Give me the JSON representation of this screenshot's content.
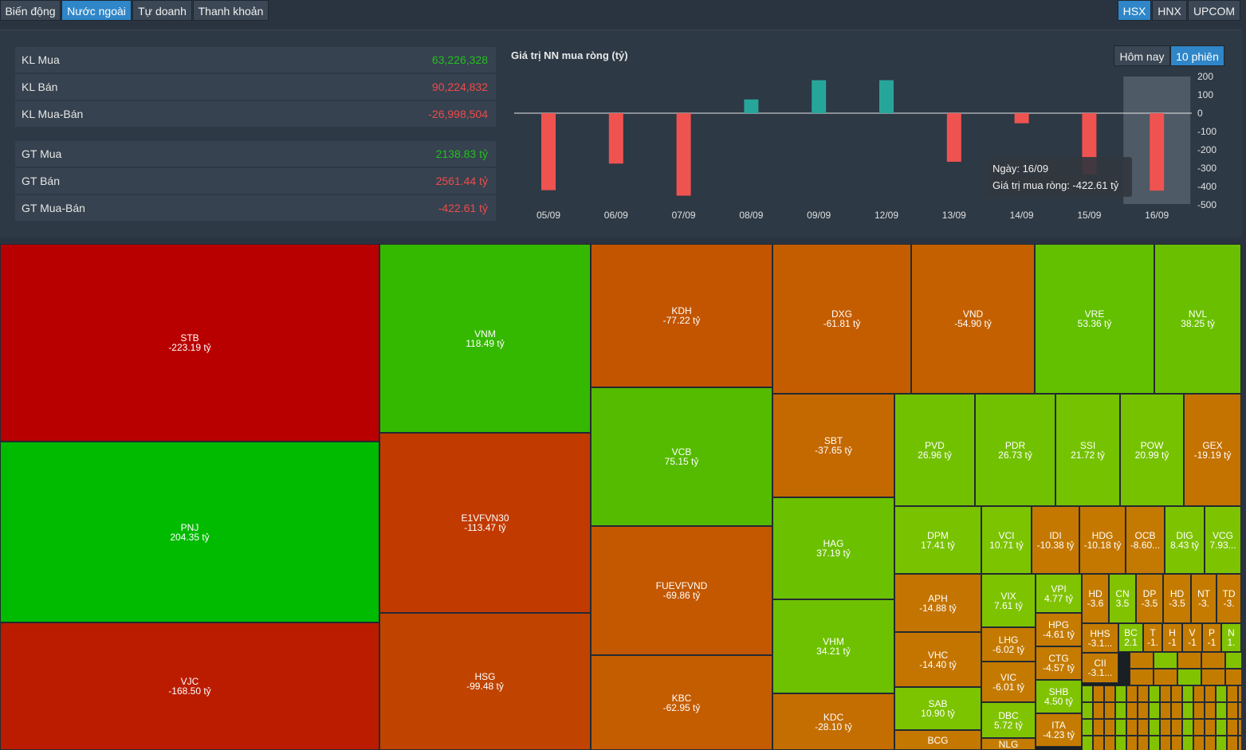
{
  "tabs": [
    "Biến động",
    "Nước ngoài",
    "Tự doanh",
    "Thanh khoản"
  ],
  "exchanges": [
    "HSX",
    "HNX",
    "UPCOM"
  ],
  "stats": [
    {
      "label": "KL Mua",
      "value": "63,226,328",
      "color": "green"
    },
    {
      "label": "KL Bán",
      "value": "90,224,832",
      "color": "red"
    },
    {
      "label": "KL Mua-Bán",
      "value": "-26,998,504",
      "color": "red"
    },
    {
      "label": "GT Mua",
      "value": "2138.83 tỷ",
      "color": "green"
    },
    {
      "label": "GT Bán",
      "value": "2561.44 tỷ",
      "color": "red"
    },
    {
      "label": "GT Mua-Bán",
      "value": "-422.61 tỷ",
      "color": "red"
    }
  ],
  "chart_controls": {
    "today": "Hôm nay",
    "ten_sessions": "10 phiên"
  },
  "tooltip": {
    "date": "Ngày: 16/09",
    "value": "Giá trị mua ròng: -422.61 tỷ"
  },
  "colors": {
    "up": "#26a69a",
    "down": "#ef5350",
    "bg": "#2a3440"
  },
  "chart_data": {
    "type": "bar",
    "title": "Giá trị NN mua ròng (tỷ)",
    "categories": [
      "05/09",
      "06/09",
      "07/09",
      "08/09",
      "09/09",
      "12/09",
      "13/09",
      "14/09",
      "15/09",
      "16/09"
    ],
    "values": [
      -420,
      -275,
      -450,
      75,
      180,
      180,
      -265,
      -55,
      -335,
      -422.61
    ],
    "ylim": [
      -500,
      200
    ],
    "yticks": [
      200,
      100,
      0,
      -100,
      -200,
      -300,
      -400,
      -500
    ],
    "highlight": "16/09"
  },
  "treemap": [
    {
      "sym": "STB",
      "val": "-223.19 tỷ",
      "color": "#b80000"
    },
    {
      "sym": "PNJ",
      "val": "204.35 tỷ",
      "color": "#00bb00"
    },
    {
      "sym": "VJC",
      "val": "-168.50 tỷ",
      "color": "#bb1c00"
    },
    {
      "sym": "VNM",
      "val": "118.49 tỷ",
      "color": "#35b800"
    },
    {
      "sym": "E1VFVN30",
      "val": "-113.47 tỷ",
      "color": "#c13a00"
    },
    {
      "sym": "HSG",
      "val": "-99.48 tỷ",
      "color": "#c04400"
    },
    {
      "sym": "KDH",
      "val": "-77.22 tỷ",
      "color": "#c35500"
    },
    {
      "sym": "VCB",
      "val": "75.15 tỷ",
      "color": "#55bb00"
    },
    {
      "sym": "FUEVFVND",
      "val": "-69.86 tỷ",
      "color": "#c35800"
    },
    {
      "sym": "KBC",
      "val": "-62.95 tỷ",
      "color": "#c45c00"
    },
    {
      "sym": "DXG",
      "val": "-61.81 tỷ",
      "color": "#c45d00"
    },
    {
      "sym": "VND",
      "val": "-54.90 tỷ",
      "color": "#c46000"
    },
    {
      "sym": "VRE",
      "val": "53.36 tỷ",
      "color": "#62c000"
    },
    {
      "sym": "NVL",
      "val": "38.25 tỷ",
      "color": "#6ac000"
    },
    {
      "sym": "SBT",
      "val": "-37.65 tỷ",
      "color": "#c46800"
    },
    {
      "sym": "HAG",
      "val": "37.19 tỷ",
      "color": "#6bc000"
    },
    {
      "sym": "VHM",
      "val": "34.21 tỷ",
      "color": "#6ec100"
    },
    {
      "sym": "KDC",
      "val": "-28.10 tỷ",
      "color": "#c46d00"
    },
    {
      "sym": "PVD",
      "val": "26.96 tỷ",
      "color": "#72c100"
    },
    {
      "sym": "PDR",
      "val": "26.73 tỷ",
      "color": "#72c100"
    },
    {
      "sym": "SSI",
      "val": "21.72 tỷ",
      "color": "#75c200"
    },
    {
      "sym": "POW",
      "val": "20.99 tỷ",
      "color": "#76c200"
    },
    {
      "sym": "GEX",
      "val": "-19.19 tỷ",
      "color": "#c47200"
    },
    {
      "sym": "DPM",
      "val": "17.41 tỷ",
      "color": "#78c200"
    },
    {
      "sym": "VCI",
      "val": "10.71 tỷ",
      "color": "#7cc300"
    },
    {
      "sym": "IDI",
      "val": "-10.38 tỷ",
      "color": "#c47800"
    },
    {
      "sym": "HDG",
      "val": "-10.18 tỷ",
      "color": "#c47800"
    },
    {
      "sym": "OCB",
      "val": "-8.60...",
      "color": "#c47900"
    },
    {
      "sym": "DIG",
      "val": "8.43 tỷ",
      "color": "#7ec300"
    },
    {
      "sym": "VCG",
      "val": "7.93...",
      "color": "#7ec300"
    },
    {
      "sym": "APH",
      "val": "-14.88 tỷ",
      "color": "#c47400"
    },
    {
      "sym": "VHC",
      "val": "-14.40 tỷ",
      "color": "#c47500"
    },
    {
      "sym": "SAB",
      "val": "10.90 tỷ",
      "color": "#7cc300"
    },
    {
      "sym": "BCG",
      "val": "",
      "color": "#c47800"
    },
    {
      "sym": "VIX",
      "val": "7.61 tỷ",
      "color": "#7ec300"
    },
    {
      "sym": "LHG",
      "val": "-6.02 tỷ",
      "color": "#c47a00"
    },
    {
      "sym": "VIC",
      "val": "-6.01 tỷ",
      "color": "#c47a00"
    },
    {
      "sym": "DBC",
      "val": "5.72 tỷ",
      "color": "#80c300"
    },
    {
      "sym": "VPI",
      "val": "4.77 tỷ",
      "color": "#80c300"
    },
    {
      "sym": "HPG",
      "val": "-4.61 tỷ",
      "color": "#c47b00"
    },
    {
      "sym": "CTG",
      "val": "-4.57 tỷ",
      "color": "#c47b00"
    },
    {
      "sym": "SHB",
      "val": "4.50 tỷ",
      "color": "#80c300"
    },
    {
      "sym": "ITA",
      "val": "-4.23 tỷ",
      "color": "#c47b00"
    },
    {
      "sym": "HD",
      "val": "-3.6",
      "color": "#c47b00"
    },
    {
      "sym": "CN",
      "val": "3.5",
      "color": "#81c300"
    },
    {
      "sym": "DP",
      "val": "-3.5",
      "color": "#c47b00"
    },
    {
      "sym": "HD",
      "val": "-3.5",
      "color": "#c47b00"
    },
    {
      "sym": "NT",
      "val": "-3.",
      "color": "#c47b00"
    },
    {
      "sym": "TD",
      "val": "-3.",
      "color": "#c47b00"
    },
    {
      "sym": "HHS",
      "val": "-3.1...",
      "color": "#c47b00"
    },
    {
      "sym": "CII",
      "val": "-3.1...",
      "color": "#c47b00"
    },
    {
      "sym": "BC",
      "val": "2.1",
      "color": "#81c300"
    },
    {
      "sym": "T",
      "val": "-1.",
      "color": "#c47c00"
    },
    {
      "sym": "H",
      "val": "-1",
      "color": "#c47c00"
    },
    {
      "sym": "V",
      "val": "-1",
      "color": "#c47c00"
    },
    {
      "sym": "P",
      "val": "-1",
      "color": "#c47c00"
    },
    {
      "sym": "N",
      "val": "1.",
      "color": "#81c300"
    },
    {
      "sym": "NLG",
      "val": "",
      "color": "#c47c00"
    }
  ]
}
